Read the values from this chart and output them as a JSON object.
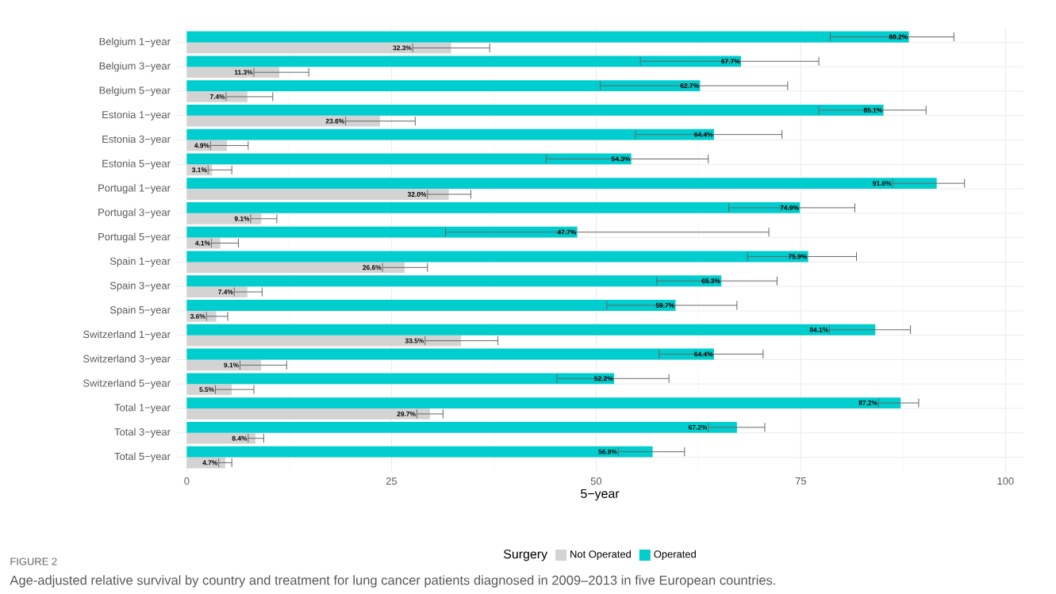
{
  "chart_data": {
    "type": "bar",
    "orientation": "horizontal",
    "categories": [
      "Belgium 1−year",
      "Belgium 3−year",
      "Belgium 5−year",
      "Estonia 1−year",
      "Estonia 3−year",
      "Estonia 5−year",
      "Portugal 1−year",
      "Portugal 3−year",
      "Portugal 5−year",
      "Spain 1−year",
      "Spain 3−year",
      "Spain 5−year",
      "Switzerland 1−year",
      "Switzerland 3−year",
      "Switzerland 5−year",
      "Total 1−year",
      "Total 3−year",
      "Total 5−year"
    ],
    "series": [
      {
        "name": "Not Operated",
        "color": "#d3d3d3",
        "values": [
          32.3,
          11.3,
          7.4,
          23.6,
          4.9,
          3.1,
          32.0,
          9.1,
          4.1,
          26.6,
          7.4,
          3.6,
          33.5,
          9.1,
          5.5,
          29.7,
          8.4,
          4.7
        ],
        "errors": [
          [
            27.6,
            37.0
          ],
          [
            8.2,
            14.9
          ],
          [
            4.8,
            10.5
          ],
          [
            19.4,
            27.9
          ],
          [
            2.9,
            7.5
          ],
          [
            2.6,
            5.5
          ],
          [
            29.4,
            34.7
          ],
          [
            7.8,
            11.0
          ],
          [
            3.0,
            6.3
          ],
          [
            23.9,
            29.4
          ],
          [
            5.8,
            9.2
          ],
          [
            2.4,
            5.0
          ],
          [
            29.1,
            38.0
          ],
          [
            6.5,
            12.2
          ],
          [
            3.5,
            8.2
          ],
          [
            28.1,
            31.3
          ],
          [
            7.5,
            9.4
          ],
          [
            3.9,
            5.5
          ]
        ],
        "value_labels": [
          "32.3%",
          "11.3%",
          "7.4%",
          "23.6%",
          "4.9%",
          "3.1%",
          "32.0%",
          "9.1%",
          "4.1%",
          "26.6%",
          "7.4%",
          "3.6%",
          "33.5%",
          "9.1%",
          "5.5%",
          "29.7%",
          "8.4%",
          "4.7%"
        ]
      },
      {
        "name": "Operated",
        "color": "#00cdcd",
        "values": [
          88.2,
          67.7,
          62.7,
          85.1,
          64.4,
          54.3,
          91.6,
          74.9,
          47.7,
          75.9,
          65.3,
          59.7,
          84.1,
          64.4,
          52.2,
          87.2,
          67.2,
          56.9
        ],
        "errors": [
          [
            78.6,
            93.7
          ],
          [
            55.4,
            77.2
          ],
          [
            50.5,
            73.4
          ],
          [
            77.2,
            90.3
          ],
          [
            54.8,
            72.7
          ],
          [
            43.9,
            63.7
          ],
          [
            86.2,
            95.0
          ],
          [
            66.2,
            81.6
          ],
          [
            31.6,
            71.1
          ],
          [
            68.5,
            81.8
          ],
          [
            57.4,
            72.1
          ],
          [
            51.3,
            67.2
          ],
          [
            78.5,
            88.4
          ],
          [
            57.7,
            70.4
          ],
          [
            45.2,
            58.9
          ],
          [
            84.5,
            89.4
          ],
          [
            63.7,
            70.6
          ],
          [
            52.7,
            60.8
          ]
        ],
        "value_labels": [
          "88.2%",
          "67.7%",
          "62.7%",
          "85.1%",
          "64.4%",
          "54.3%",
          "91.6%",
          "74.9%",
          "47.7%",
          "75.9%",
          "65.3%",
          "59.7%",
          "84.1%",
          "64.4%",
          "52.2%",
          "87.2%",
          "67.2%",
          "56.9%"
        ]
      }
    ],
    "xlim": [
      -1.3,
      102.2
    ],
    "xticks": [
      0,
      25,
      50,
      75,
      100
    ],
    "xlabel": "5−year",
    "legend": "bottom",
    "legend_title": "Surgery",
    "grid": true,
    "annotations": [
      "FIGURE 2",
      "Age-adjusted relative survival by country and treatment for lung cancer patients diagnosed in 2009–2013 in five European countries."
    ]
  }
}
